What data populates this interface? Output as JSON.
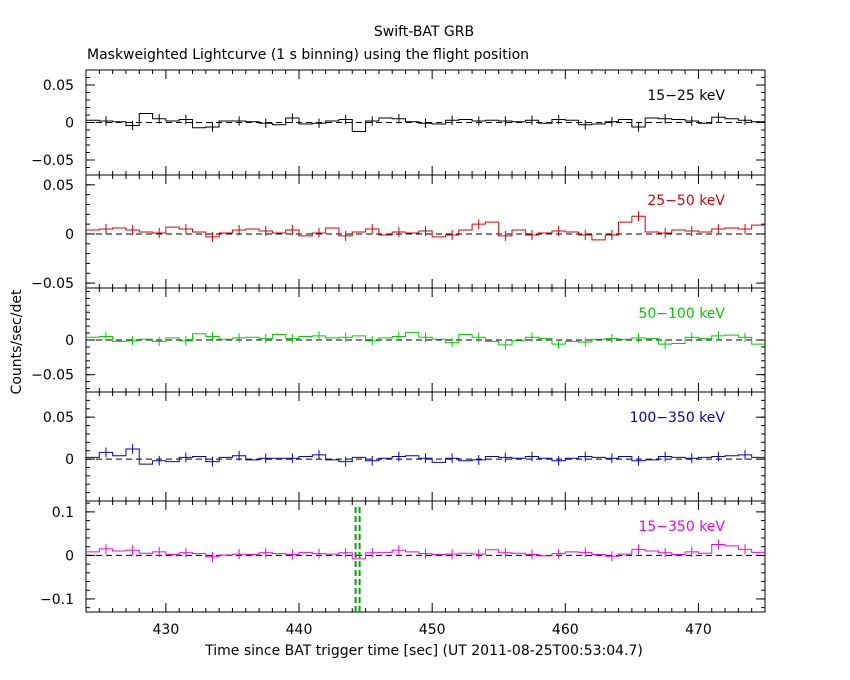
{
  "figure": {
    "title": "Swift-BAT GRB",
    "subtitle": "Maskweighted Lightcurve (1 s binning) using the flight position",
    "xlabel": "Time since BAT trigger time [sec] (UT 2011-08-25T00:53:04.7)",
    "ylabel": "Counts/sec/det"
  },
  "chart_data": [
    {
      "type": "line",
      "series": [
        {
          "name": "15-25 keV",
          "color": "#000000",
          "x": [
            424,
            425,
            426,
            427,
            428,
            429,
            430,
            431,
            432,
            433,
            434,
            435,
            436,
            437,
            438,
            439,
            440,
            441,
            442,
            443,
            444,
            445,
            446,
            447,
            448,
            449,
            450,
            451,
            452,
            453,
            454,
            455,
            456,
            457,
            458,
            459,
            460,
            461,
            462,
            463,
            464,
            465,
            466,
            467,
            468,
            469,
            470,
            471,
            472,
            473,
            474
          ],
          "values": [
            0.003,
            0.002,
            0.001,
            -0.004,
            0.012,
            0.005,
            0.002,
            0.004,
            -0.007,
            -0.006,
            0.002,
            0.002,
            0.001,
            -0.001,
            -0.003,
            0.006,
            -0.002,
            -0.001,
            0.002,
            0.004,
            -0.012,
            0.002,
            0.006,
            0.005,
            0.001,
            -0.001,
            -0.002,
            0.003,
            0.004,
            0.002,
            0.003,
            0.002,
            0.001,
            0.003,
            -0.001,
            0.004,
            0.003,
            -0.003,
            -0.002,
            0.001,
            0.004,
            -0.006,
            0.006,
            0.005,
            0.004,
            0.002,
            -0.001,
            0.007,
            0.005,
            0.003,
            0.001
          ]
        }
      ],
      "xlim": [
        424,
        475
      ],
      "ylim": [
        -0.07,
        0.07
      ],
      "yticks": [
        0.05,
        0,
        -0.05
      ],
      "yticklabels": [
        "0.05",
        "0",
        "−0.05"
      ],
      "label_color": "#000000"
    },
    {
      "type": "line",
      "series": [
        {
          "name": "25-50 keV",
          "color": "#dd0000",
          "x": [
            424,
            425,
            426,
            427,
            428,
            429,
            430,
            431,
            432,
            433,
            434,
            435,
            436,
            437,
            438,
            439,
            440,
            441,
            442,
            443,
            444,
            445,
            446,
            447,
            448,
            449,
            450,
            451,
            452,
            453,
            454,
            455,
            456,
            457,
            458,
            459,
            460,
            461,
            462,
            463,
            464,
            465,
            466,
            467,
            468,
            469,
            470,
            471,
            472,
            473,
            474
          ],
          "values": [
            0.004,
            0.005,
            0.006,
            0.004,
            0.002,
            0.001,
            0.007,
            0.005,
            0.002,
            -0.003,
            0.001,
            0.004,
            0.005,
            0.003,
            0.001,
            0.004,
            -0.002,
            0.001,
            0.006,
            -0.002,
            0.002,
            0.005,
            -0.001,
            0.002,
            0.001,
            0.003,
            -0.003,
            -0.001,
            0.004,
            0.01,
            0.012,
            -0.002,
            0.004,
            -0.001,
            0.001,
            0.003,
            0.002,
            -0.001,
            -0.006,
            -0.001,
            0.012,
            0.018,
            0.002,
            0.001,
            0.004,
            0.003,
            0.002,
            0.005,
            0.006,
            0.005,
            0.009
          ]
        }
      ],
      "xlim": [
        424,
        475
      ],
      "ylim": [
        -0.055,
        0.06
      ],
      "yticks": [
        0.05,
        0,
        -0.05
      ],
      "yticklabels": [
        "0.05",
        "0",
        "−0.05"
      ],
      "label_color": "#dd0000"
    },
    {
      "type": "line",
      "series": [
        {
          "name": "50-100 keV",
          "color": "#00cc00",
          "x": [
            424,
            425,
            426,
            427,
            428,
            429,
            430,
            431,
            432,
            433,
            434,
            435,
            436,
            437,
            438,
            439,
            440,
            441,
            442,
            443,
            444,
            445,
            446,
            447,
            448,
            449,
            450,
            451,
            452,
            453,
            454,
            455,
            456,
            457,
            458,
            459,
            460,
            461,
            462,
            463,
            464,
            465,
            466,
            467,
            468,
            469,
            470,
            471,
            472,
            473,
            474
          ],
          "values": [
            0.004,
            0.005,
            -0.002,
            -0.001,
            0.001,
            -0.002,
            0.003,
            -0.001,
            0.009,
            0.005,
            0.001,
            0.003,
            0.004,
            0.002,
            0.008,
            0.002,
            0.005,
            0.006,
            0.003,
            0.004,
            0.006,
            -0.001,
            0.003,
            0.005,
            0.011,
            0.004,
            0.001,
            -0.004,
            0.008,
            0.004,
            -0.002,
            -0.007,
            -0.001,
            0.004,
            0.002,
            -0.006,
            -0.002,
            -0.003,
            0.001,
            0.002,
            0.001,
            0.003,
            0.002,
            -0.006,
            -0.005,
            0.004,
            0.002,
            0.006,
            0.007,
            0.004,
            -0.006
          ]
        }
      ],
      "xlim": [
        424,
        475
      ],
      "ylim": [
        -0.075,
        0.075
      ],
      "yticks": [
        0,
        -0.05
      ],
      "yticklabels": [
        "0",
        "−0.05"
      ],
      "label_color": "#00cc00"
    },
    {
      "type": "line",
      "series": [
        {
          "name": "100-350 keV",
          "color": "#0000cc",
          "x": [
            424,
            425,
            426,
            427,
            428,
            429,
            430,
            431,
            432,
            433,
            434,
            435,
            436,
            437,
            438,
            439,
            440,
            441,
            442,
            443,
            444,
            445,
            446,
            447,
            448,
            449,
            450,
            451,
            452,
            453,
            454,
            455,
            456,
            457,
            458,
            459,
            460,
            461,
            462,
            463,
            464,
            465,
            466,
            467,
            468,
            469,
            470,
            471,
            472,
            473,
            474
          ],
          "values": [
            0.002,
            0.008,
            0.004,
            0.012,
            -0.006,
            -0.002,
            -0.003,
            0.002,
            0.003,
            -0.003,
            0.002,
            0.004,
            -0.001,
            0.001,
            0.001,
            0.001,
            0.003,
            0.005,
            -0.001,
            -0.003,
            0.002,
            -0.002,
            0.001,
            0.003,
            0.004,
            0.001,
            -0.004,
            0.001,
            -0.002,
            -0.001,
            0.003,
            0.002,
            0.001,
            0.003,
            0.001,
            -0.002,
            0.001,
            0.003,
            0.002,
            0.001,
            0.003,
            -0.002,
            -0.001,
            0.003,
            0.002,
            0.001,
            0.002,
            0.003,
            0.004,
            0.005,
            0.002
          ]
        }
      ],
      "xlim": [
        424,
        475
      ],
      "ylim": [
        -0.05,
        0.08
      ],
      "yticks": [
        0.05,
        0
      ],
      "yticklabels": [
        "0.05",
        "0"
      ],
      "label_color": "#0000cc"
    },
    {
      "type": "line",
      "series": [
        {
          "name": "15-350 keV",
          "color": "#ee00ee",
          "x": [
            424,
            425,
            426,
            427,
            428,
            429,
            430,
            431,
            432,
            433,
            434,
            435,
            436,
            437,
            438,
            439,
            440,
            441,
            442,
            443,
            444,
            445,
            446,
            447,
            448,
            449,
            450,
            451,
            452,
            453,
            454,
            455,
            456,
            457,
            458,
            459,
            460,
            461,
            462,
            463,
            464,
            465,
            466,
            467,
            468,
            469,
            470,
            471,
            472,
            473,
            474
          ],
          "values": [
            0.008,
            0.015,
            0.01,
            0.012,
            0.005,
            0.008,
            0.002,
            0.006,
            0.004,
            -0.003,
            0.001,
            0.003,
            0.002,
            0.006,
            0.004,
            0.002,
            0.007,
            0.004,
            0.003,
            0.006,
            -0.008,
            0.006,
            0.007,
            0.012,
            0.008,
            0.004,
            0.002,
            0.003,
            0.005,
            0.003,
            0.013,
            0.006,
            0.005,
            0.002,
            -0.001,
            0.004,
            0.008,
            0.007,
            0.002,
            -0.002,
            0.003,
            0.014,
            0.01,
            0.006,
            0.002,
            0.008,
            0.005,
            0.025,
            0.022,
            0.014,
            0.007
          ]
        }
      ],
      "xlim": [
        424,
        475
      ],
      "ylim": [
        -0.13,
        0.125
      ],
      "yticks": [
        0.1,
        0,
        -0.1
      ],
      "yticklabels": [
        "0.1",
        "0",
        "−0.1"
      ],
      "label_color": "#ee00ee"
    }
  ],
  "xticks": [
    430,
    440,
    450,
    460,
    470
  ],
  "trigger_marker_x": 444.4,
  "marker_color": "#00aa00"
}
